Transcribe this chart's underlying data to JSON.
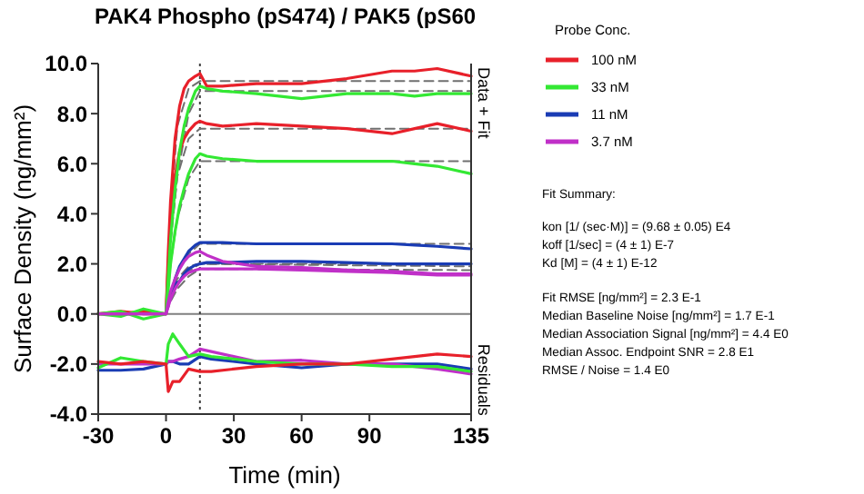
{
  "chart_data": {
    "type": "line",
    "title": "PAK4 Phospho (pS474) / PAK5 (pS60",
    "xlabel": "Time (min)",
    "ylabel": "Surface Density (ng/mm²)",
    "legend_title": "Probe Conc.",
    "legend": "right",
    "grid": false,
    "marker": "none",
    "xlim": [
      -30,
      135
    ],
    "xticks": [
      -30,
      0,
      30,
      60,
      90,
      135
    ],
    "ylim": [
      -4,
      10
    ],
    "yticks": [
      {
        "value": -4,
        "label": "-4.0"
      },
      {
        "value": -2,
        "label": "-2.0"
      },
      {
        "value": 0,
        "label": "0.0"
      },
      {
        "value": 2,
        "label": "2.0"
      },
      {
        "value": 4,
        "label": "4.0"
      },
      {
        "value": 6,
        "label": "6.0"
      },
      {
        "value": 8,
        "label": "8.0"
      },
      {
        "value": 10,
        "label": "10.0"
      }
    ],
    "ref_lines": [
      {
        "axis": "y",
        "value": 0,
        "color": "#808080",
        "line_style": "solid"
      },
      {
        "axis": "x",
        "value": 15,
        "color": "#404040",
        "line_style": "dotted"
      }
    ],
    "annotations": [
      "Data + Fit",
      "Residuals",
      "Fit Summary:",
      "kon  [1/ (sec·M)]  =   (9.68 ± 0.05) E4",
      "koff  [1/sec]  =   (4 ± 1) E-7",
      "Kd  [M]  =   (4 ± 1) E-12",
      "Fit RMSE [ng/mm²]  =   2.3 E-1",
      "Median Baseline Noise [ng/mm²]  =   1.7 E-1",
      "Median Association Signal [ng/mm²]  =   4.4 E0",
      "Median Assoc. Endpoint SNR  =   2.8 E1",
      "RMSE / Noise  =   1.4 E0"
    ],
    "series": [
      {
        "x": [
          0,
          2,
          5,
          10,
          15,
          135
        ],
        "values": [
          0,
          4,
          7.5,
          9,
          9.3,
          9.3
        ],
        "color": "#707070",
        "line_style": "dashed"
      },
      {
        "x": [
          0,
          2,
          5,
          10,
          15,
          135
        ],
        "values": [
          0,
          3,
          5.5,
          7,
          7.4,
          7.4
        ],
        "color": "#707070",
        "line_style": "dashed"
      },
      {
        "x": [
          0,
          2,
          5,
          10,
          15,
          135
        ],
        "values": [
          0,
          2.8,
          5.5,
          8,
          8.9,
          8.9
        ],
        "color": "#707070",
        "line_style": "dashed"
      },
      {
        "x": [
          0,
          2,
          5,
          10,
          15,
          135
        ],
        "values": [
          0,
          2,
          3.8,
          5.4,
          6.1,
          6.1
        ],
        "color": "#707070",
        "line_style": "dashed"
      },
      {
        "x": [
          0,
          2,
          5,
          10,
          15,
          135
        ],
        "values": [
          0,
          0.8,
          1.7,
          2.4,
          2.8,
          2.8
        ],
        "color": "#707070",
        "line_style": "dashed"
      },
      {
        "x": [
          0,
          2,
          5,
          10,
          15,
          135
        ],
        "values": [
          0,
          0.6,
          1.2,
          1.7,
          2,
          2
        ],
        "color": "#707070",
        "line_style": "dashed"
      },
      {
        "x": [
          0,
          2,
          5,
          10,
          15,
          135
        ],
        "values": [
          0,
          0.7,
          1.4,
          1.9,
          2,
          1.9
        ],
        "color": "#707070",
        "line_style": "dashed"
      },
      {
        "x": [
          0,
          2,
          5,
          10,
          15,
          135
        ],
        "values": [
          0,
          0.5,
          1,
          1.5,
          1.8,
          1.75
        ],
        "color": "#707070",
        "line_style": "dashed"
      },
      {
        "name": "100 nM",
        "color": "#e8202a",
        "line_style": "solid",
        "x": [
          -30,
          -20,
          -10,
          0,
          1,
          2,
          4,
          6,
          8,
          10,
          13,
          15,
          18,
          25,
          40,
          60,
          80,
          100,
          110,
          120,
          135
        ],
        "values": [
          0,
          0.1,
          0,
          0,
          2.5,
          4.5,
          7,
          8.3,
          9,
          9.3,
          9.5,
          9.6,
          9.1,
          9.1,
          9.2,
          9.2,
          9.4,
          9.7,
          9.7,
          9.8,
          9.5
        ]
      },
      {
        "color": "#e8202a",
        "line_style": "solid",
        "x": [
          -30,
          -20,
          -10,
          0,
          1,
          2,
          4,
          6,
          8,
          10,
          13,
          15,
          18,
          25,
          40,
          60,
          80,
          100,
          110,
          120,
          135
        ],
        "values": [
          0,
          0,
          0.1,
          0,
          2,
          3.5,
          5.5,
          6.5,
          7,
          7.3,
          7.6,
          7.7,
          7.6,
          7.5,
          7.6,
          7.5,
          7.4,
          7.2,
          7.4,
          7.6,
          7.3
        ]
      },
      {
        "name": "33 nM",
        "color": "#33e833",
        "line_style": "solid",
        "x": [
          -30,
          -20,
          -10,
          0,
          1,
          2,
          4,
          6,
          8,
          10,
          13,
          15,
          18,
          25,
          40,
          60,
          80,
          100,
          110,
          120,
          135
        ],
        "values": [
          0,
          -0.1,
          0.2,
          0,
          1.5,
          3,
          5,
          6.5,
          7.5,
          8.2,
          8.9,
          9.1,
          9,
          8.9,
          8.8,
          8.6,
          8.8,
          8.8,
          8.7,
          8.8,
          8.8
        ]
      },
      {
        "color": "#33e833",
        "line_style": "solid",
        "x": [
          -30,
          -20,
          -10,
          0,
          1,
          2,
          4,
          6,
          8,
          10,
          13,
          15,
          18,
          25,
          40,
          60,
          80,
          100,
          110,
          120,
          135
        ],
        "values": [
          0,
          0.1,
          -0.2,
          0,
          1,
          2,
          3.3,
          4.3,
          5,
          5.6,
          6.2,
          6.4,
          6.3,
          6.2,
          6.1,
          6.1,
          6.1,
          6.1,
          6,
          5.9,
          5.6
        ]
      },
      {
        "name": "11 nM",
        "color": "#1a3cb4",
        "line_style": "solid",
        "x": [
          2,
          4,
          6,
          8,
          10,
          13,
          15,
          18,
          25,
          40,
          60,
          80,
          100,
          110,
          120,
          135
        ],
        "values": [
          0.6,
          1.4,
          1.9,
          2.2,
          2.5,
          2.75,
          2.85,
          2.85,
          2.85,
          2.8,
          2.8,
          2.8,
          2.8,
          2.75,
          2.7,
          2.6
        ]
      },
      {
        "color": "#1a3cb4",
        "line_style": "solid",
        "x": [
          4,
          6,
          8,
          10,
          13,
          15,
          18,
          25,
          40,
          60,
          80,
          100,
          110,
          120,
          135
        ],
        "values": [
          1.2,
          1.3,
          1.6,
          1.8,
          1.95,
          2,
          2.05,
          2.05,
          2.1,
          2.1,
          2.05,
          2,
          2,
          2,
          2
        ]
      },
      {
        "name": "3.7 nM",
        "color": "#c030c8",
        "line_style": "solid",
        "x": [
          -30,
          -20,
          -10,
          0,
          1,
          2,
          4,
          6,
          8,
          10,
          13,
          15,
          18,
          25,
          40,
          60,
          80,
          100,
          110,
          120,
          135
        ],
        "values": [
          0,
          0,
          0,
          0,
          0.5,
          0.9,
          1.4,
          1.8,
          2.1,
          2.3,
          2.45,
          2.5,
          2.35,
          2.1,
          1.9,
          1.85,
          1.75,
          1.7,
          1.65,
          1.6,
          1.6
        ]
      },
      {
        "color": "#c030c8",
        "line_style": "solid",
        "x": [
          -30,
          -20,
          -10,
          0,
          1,
          2,
          4,
          6,
          8,
          10,
          13,
          15,
          18,
          25,
          40,
          60,
          80,
          100,
          110,
          120,
          135
        ],
        "values": [
          0,
          0,
          0,
          0,
          0.3,
          0.6,
          1,
          1.3,
          1.5,
          1.65,
          1.75,
          1.8,
          1.8,
          1.8,
          1.8,
          1.75,
          1.7,
          1.65,
          1.6,
          1.55,
          1.55
        ]
      },
      {
        "color": "#1a3cb4",
        "line_style": "solid",
        "x": [
          -30,
          -20,
          -10,
          0,
          1,
          3,
          6,
          10,
          15,
          20,
          40,
          60,
          80,
          100,
          120,
          135
        ],
        "values": [
          -2.25,
          -2.25,
          -2.2,
          -2,
          -1.9,
          -1.9,
          -2,
          -2,
          -1.7,
          -1.8,
          -2,
          -2.15,
          -2,
          -2,
          -2,
          -2.2
        ]
      },
      {
        "color": "#c030c8",
        "line_style": "solid",
        "x": [
          -30,
          -20,
          -10,
          0,
          1,
          3,
          6,
          10,
          15,
          20,
          40,
          60,
          80,
          100,
          120,
          135
        ],
        "values": [
          -2,
          -2,
          -2,
          -2,
          -1.9,
          -1.9,
          -1.8,
          -1.7,
          -1.4,
          -1.5,
          -1.9,
          -1.85,
          -2,
          -2,
          -2.2,
          -2.4
        ]
      },
      {
        "color": "#33e833",
        "line_style": "solid",
        "x": [
          -30,
          -20,
          -10,
          0,
          1,
          3,
          6,
          10,
          15,
          20,
          40,
          60,
          80,
          100,
          120,
          135
        ],
        "values": [
          -2.15,
          -1.75,
          -1.9,
          -2,
          -1.2,
          -0.8,
          -1.2,
          -1.7,
          -1.6,
          -1.7,
          -1.9,
          -2,
          -2,
          -2.1,
          -2.1,
          -2.3
        ]
      },
      {
        "color": "#e8202a",
        "line_style": "solid",
        "x": [
          -30,
          -20,
          -10,
          0,
          1,
          3,
          6,
          10,
          15,
          20,
          40,
          60,
          80,
          100,
          120,
          135
        ],
        "values": [
          -1.9,
          -2,
          -1.9,
          -2,
          -3.1,
          -2.7,
          -2.7,
          -2.2,
          -2.3,
          -2.3,
          -2.1,
          -2,
          -2,
          -1.8,
          -1.6,
          -1.7
        ]
      }
    ]
  }
}
